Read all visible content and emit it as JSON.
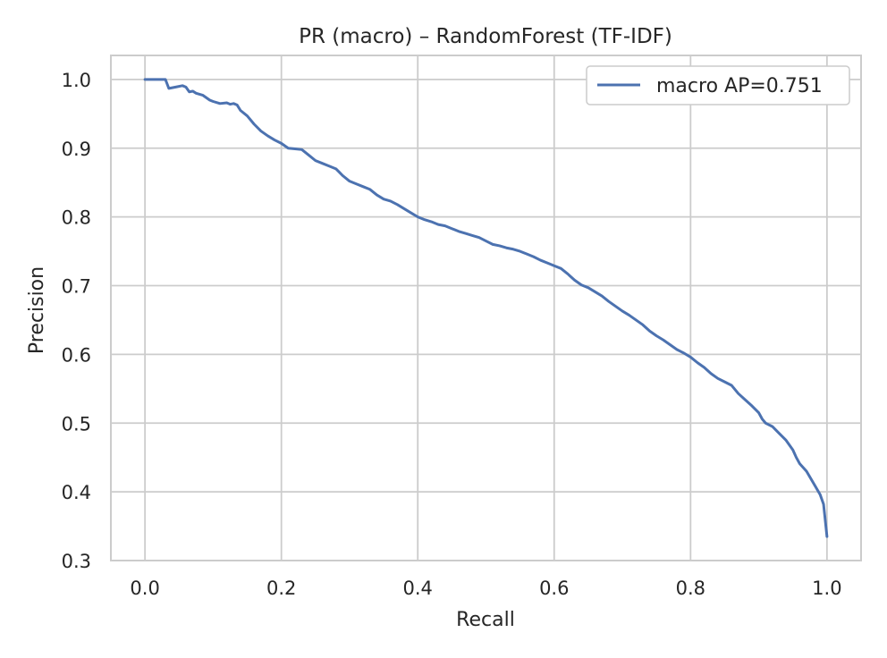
{
  "chart_data": {
    "type": "line",
    "title": "PR (macro) – RandomForest (TF-IDF)",
    "xlabel": "Recall",
    "ylabel": "Precision",
    "xlim": [
      -0.05,
      1.05
    ],
    "ylim": [
      0.3,
      1.035
    ],
    "xticks": [
      0.0,
      0.2,
      0.4,
      0.6,
      0.8,
      1.0
    ],
    "xtick_labels": [
      "0.0",
      "0.2",
      "0.4",
      "0.6",
      "0.8",
      "1.0"
    ],
    "yticks": [
      0.3,
      0.4,
      0.5,
      0.6,
      0.7,
      0.8,
      0.9,
      1.0
    ],
    "ytick_labels": [
      "0.3",
      "0.4",
      "0.5",
      "0.6",
      "0.7",
      "0.8",
      "0.9",
      "1.0"
    ],
    "grid": true,
    "legend_position": "top-right",
    "series": [
      {
        "name": "macro AP=0.751",
        "color": "#4c72b0",
        "points": [
          [
            0.0,
            1.0
          ],
          [
            0.03,
            1.0
          ],
          [
            0.035,
            0.987
          ],
          [
            0.045,
            0.989
          ],
          [
            0.055,
            0.991
          ],
          [
            0.06,
            0.989
          ],
          [
            0.065,
            0.982
          ],
          [
            0.07,
            0.983
          ],
          [
            0.075,
            0.98
          ],
          [
            0.085,
            0.977
          ],
          [
            0.095,
            0.97
          ],
          [
            0.1,
            0.968
          ],
          [
            0.11,
            0.965
          ],
          [
            0.12,
            0.966
          ],
          [
            0.125,
            0.964
          ],
          [
            0.13,
            0.965
          ],
          [
            0.135,
            0.963
          ],
          [
            0.14,
            0.955
          ],
          [
            0.15,
            0.947
          ],
          [
            0.16,
            0.935
          ],
          [
            0.17,
            0.925
          ],
          [
            0.18,
            0.918
          ],
          [
            0.19,
            0.912
          ],
          [
            0.2,
            0.907
          ],
          [
            0.21,
            0.9
          ],
          [
            0.22,
            0.899
          ],
          [
            0.23,
            0.898
          ],
          [
            0.24,
            0.89
          ],
          [
            0.25,
            0.882
          ],
          [
            0.26,
            0.878
          ],
          [
            0.27,
            0.874
          ],
          [
            0.28,
            0.87
          ],
          [
            0.29,
            0.86
          ],
          [
            0.3,
            0.852
          ],
          [
            0.31,
            0.848
          ],
          [
            0.32,
            0.844
          ],
          [
            0.33,
            0.84
          ],
          [
            0.34,
            0.832
          ],
          [
            0.35,
            0.826
          ],
          [
            0.36,
            0.823
          ],
          [
            0.37,
            0.818
          ],
          [
            0.38,
            0.812
          ],
          [
            0.39,
            0.806
          ],
          [
            0.4,
            0.8
          ],
          [
            0.41,
            0.796
          ],
          [
            0.42,
            0.793
          ],
          [
            0.43,
            0.789
          ],
          [
            0.44,
            0.787
          ],
          [
            0.45,
            0.783
          ],
          [
            0.46,
            0.779
          ],
          [
            0.47,
            0.776
          ],
          [
            0.48,
            0.773
          ],
          [
            0.49,
            0.77
          ],
          [
            0.5,
            0.765
          ],
          [
            0.51,
            0.76
          ],
          [
            0.52,
            0.758
          ],
          [
            0.53,
            0.755
          ],
          [
            0.54,
            0.753
          ],
          [
            0.55,
            0.75
          ],
          [
            0.56,
            0.746
          ],
          [
            0.57,
            0.742
          ],
          [
            0.58,
            0.737
          ],
          [
            0.59,
            0.733
          ],
          [
            0.6,
            0.729
          ],
          [
            0.61,
            0.725
          ],
          [
            0.62,
            0.717
          ],
          [
            0.63,
            0.708
          ],
          [
            0.64,
            0.701
          ],
          [
            0.65,
            0.697
          ],
          [
            0.66,
            0.691
          ],
          [
            0.67,
            0.685
          ],
          [
            0.68,
            0.677
          ],
          [
            0.69,
            0.67
          ],
          [
            0.7,
            0.663
          ],
          [
            0.71,
            0.657
          ],
          [
            0.72,
            0.65
          ],
          [
            0.73,
            0.643
          ],
          [
            0.74,
            0.634
          ],
          [
            0.75,
            0.627
          ],
          [
            0.76,
            0.621
          ],
          [
            0.77,
            0.614
          ],
          [
            0.78,
            0.607
          ],
          [
            0.79,
            0.602
          ],
          [
            0.8,
            0.596
          ],
          [
            0.81,
            0.588
          ],
          [
            0.82,
            0.581
          ],
          [
            0.83,
            0.572
          ],
          [
            0.84,
            0.565
          ],
          [
            0.85,
            0.56
          ],
          [
            0.86,
            0.555
          ],
          [
            0.87,
            0.543
          ],
          [
            0.88,
            0.534
          ],
          [
            0.89,
            0.525
          ],
          [
            0.9,
            0.515
          ],
          [
            0.905,
            0.506
          ],
          [
            0.91,
            0.5
          ],
          [
            0.92,
            0.495
          ],
          [
            0.93,
            0.485
          ],
          [
            0.94,
            0.475
          ],
          [
            0.95,
            0.461
          ],
          [
            0.955,
            0.45
          ],
          [
            0.96,
            0.441
          ],
          [
            0.97,
            0.43
          ],
          [
            0.98,
            0.413
          ],
          [
            0.99,
            0.396
          ],
          [
            0.995,
            0.382
          ],
          [
            1.0,
            0.335
          ]
        ]
      }
    ]
  }
}
